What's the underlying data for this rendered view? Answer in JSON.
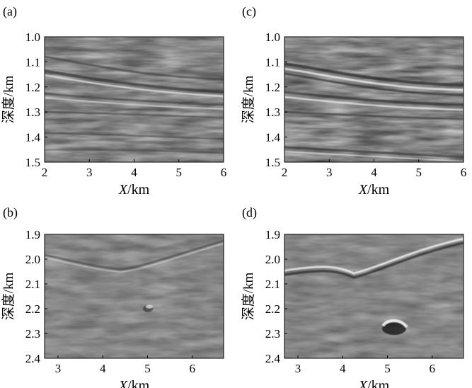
{
  "figure": {
    "panels": [
      {
        "id": "a",
        "label": "(a)",
        "xlabel_italic": "X",
        "xlabel_unit": "/km",
        "ylabel": "深度/km",
        "xticks": [
          "2",
          "3",
          "4",
          "5",
          "6"
        ],
        "yticks": [
          "1.0",
          "1.1",
          "1.2",
          "1.3",
          "1.4",
          "1.5"
        ]
      },
      {
        "id": "b",
        "label": "(b)",
        "xlabel_italic": "X",
        "xlabel_unit": "/km",
        "ylabel": "深度/km",
        "xticks": [
          "3",
          "4",
          "5",
          "6"
        ],
        "yticks": [
          "1.9",
          "2.0",
          "2.1",
          "2.2",
          "2.3",
          "2.4"
        ]
      },
      {
        "id": "c",
        "label": "(c)",
        "xlabel_italic": "X",
        "xlabel_unit": "/km",
        "ylabel": "深度/km",
        "xticks": [
          "2",
          "3",
          "4",
          "5",
          "6"
        ],
        "yticks": [
          "1.0",
          "1.1",
          "1.2",
          "1.3",
          "1.4",
          "1.5"
        ]
      },
      {
        "id": "d",
        "label": "(d)",
        "xlabel_italic": "X",
        "xlabel_unit": "/km",
        "ylabel": "深度/km",
        "xticks": [
          "3",
          "4",
          "5",
          "6"
        ],
        "yticks": [
          "1.9",
          "2.0",
          "2.1",
          "2.2",
          "2.3",
          "2.4"
        ]
      }
    ]
  },
  "chart_data": [
    {
      "type": "heatmap",
      "label": "(a)",
      "xlabel": "X/km",
      "ylabel": "深度/km",
      "xlim": [
        2,
        6
      ],
      "ylim": [
        1.5,
        1.0
      ],
      "xticks": [
        2,
        3,
        4,
        5,
        6
      ],
      "yticks": [
        1.0,
        1.1,
        1.2,
        1.3,
        1.4,
        1.5
      ],
      "colormap": "gray",
      "horizons": [
        {
          "depths": [
            1.13,
            1.17,
            1.2,
            1.22,
            1.23
          ]
        },
        {
          "depths": [
            1.22,
            1.24,
            1.25,
            1.26,
            1.27
          ]
        },
        {
          "depths": [
            1.3,
            1.3,
            1.31,
            1.32,
            1.32
          ]
        }
      ]
    },
    {
      "type": "heatmap",
      "label": "(b)",
      "xlabel": "X/km",
      "ylabel": "深度/km",
      "xlim": [
        2.7,
        6.7
      ],
      "ylim": [
        2.4,
        1.9
      ],
      "xticks": [
        3,
        4,
        5,
        6
      ],
      "yticks": [
        1.9,
        2.0,
        2.1,
        2.2,
        2.3,
        2.4
      ],
      "colormap": "gray",
      "horizons": [
        {
          "x": [
            2.7,
            3.5,
            4.0,
            4.5,
            5.0,
            5.5,
            6.0,
            6.7
          ],
          "depths": [
            1.99,
            2.03,
            2.06,
            2.05,
            2.02,
            1.99,
            1.96,
            1.95
          ]
        }
      ],
      "anomaly": {
        "x": 5.05,
        "depth": 2.21
      }
    },
    {
      "type": "heatmap",
      "label": "(c)",
      "xlabel": "X/km",
      "ylabel": "深度/km",
      "xlim": [
        2,
        6
      ],
      "ylim": [
        1.5,
        1.0
      ],
      "xticks": [
        2,
        3,
        4,
        5,
        6
      ],
      "yticks": [
        1.0,
        1.1,
        1.2,
        1.3,
        1.4,
        1.5
      ],
      "colormap": "gray",
      "horizons": [
        {
          "depths": [
            1.12,
            1.17,
            1.21,
            1.23,
            1.24
          ]
        },
        {
          "depths": [
            1.22,
            1.25,
            1.26,
            1.27,
            1.27
          ]
        },
        {
          "depths": [
            1.31,
            1.31,
            1.32,
            1.32,
            1.32
          ]
        }
      ]
    },
    {
      "type": "heatmap",
      "label": "(d)",
      "xlabel": "X/km",
      "ylabel": "深度/km",
      "xlim": [
        2.7,
        6.7
      ],
      "ylim": [
        2.4,
        1.9
      ],
      "xticks": [
        3,
        4,
        5,
        6
      ],
      "yticks": [
        1.9,
        2.0,
        2.1,
        2.2,
        2.3,
        2.4
      ],
      "colormap": "gray",
      "horizons": [
        {
          "x": [
            2.7,
            3.3,
            3.8,
            4.3,
            4.8,
            5.3,
            5.8,
            6.7
          ],
          "depths": [
            2.06,
            2.05,
            2.04,
            2.08,
            2.05,
            2.01,
            1.98,
            1.95
          ]
        }
      ],
      "anomaly": {
        "x": 5.25,
        "depth": 2.28
      }
    }
  ]
}
